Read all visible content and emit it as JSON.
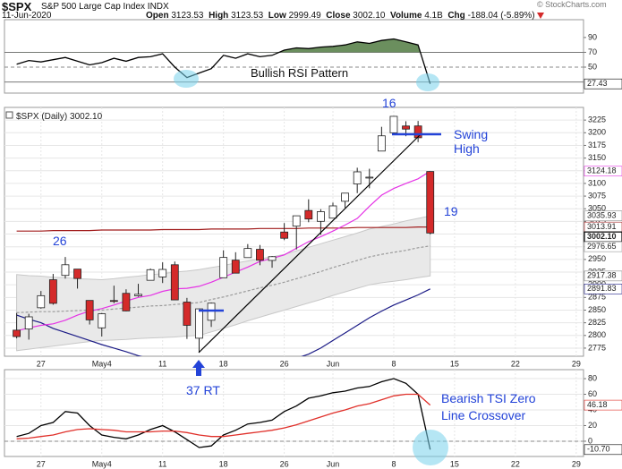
{
  "header": {
    "symbol": "$SPX",
    "name": "S&P 500 Large Cap Index",
    "exchange": "INDX",
    "date": "11-Jun-2020",
    "stats": [
      {
        "label": "Open",
        "value": "3123.53"
      },
      {
        "label": "High",
        "value": "3123.53"
      },
      {
        "label": "Low",
        "value": "2999.49"
      },
      {
        "label": "Close",
        "value": "3002.10"
      },
      {
        "label": "Volume",
        "value": "4.1B"
      },
      {
        "label": "Chg",
        "value": "-188.04 (-5.89%)"
      }
    ],
    "copyright": "© StockCharts.com"
  },
  "chart_data": [
    {
      "type": "line",
      "x": [
        0,
        1,
        2,
        3,
        4,
        5,
        6,
        7,
        8,
        9,
        10,
        11,
        12,
        13,
        14,
        15,
        16,
        17,
        18,
        19,
        20,
        21,
        22,
        23,
        24,
        25,
        26,
        27,
        28,
        29,
        30,
        31,
        32,
        33,
        34
      ],
      "xlim": [
        -1,
        46.6
      ],
      "ylim": [
        15,
        114
      ],
      "yticks": [
        90,
        70,
        50
      ],
      "grid": false,
      "levels": [
        70,
        30
      ],
      "dashed_levels": [
        50
      ],
      "annotations": [
        "Bullish RSI Pattern"
      ],
      "series": [
        {
          "color": "#000000",
          "fill_above": 70,
          "fill_color": "#6b8f5e",
          "values": [
            54,
            59,
            57,
            60,
            63,
            58,
            53,
            56,
            62,
            58,
            63,
            64,
            68,
            50,
            36,
            42,
            48,
            66,
            62,
            68,
            64,
            66,
            73,
            76,
            75,
            77,
            78,
            80,
            84,
            82,
            86,
            88,
            84,
            80,
            27.43
          ]
        }
      ]
    },
    {
      "type": "candlestick",
      "title": "$SPX (Daily)",
      "last_value_label": "3002.10",
      "x": [
        0,
        1,
        2,
        3,
        4,
        5,
        6,
        7,
        8,
        9,
        10,
        11,
        12,
        13,
        14,
        15,
        16,
        17,
        18,
        19,
        20,
        21,
        22,
        23,
        24,
        25,
        26,
        27,
        28,
        29,
        30,
        31,
        32,
        33,
        34
      ],
      "xlim": [
        -1,
        46.6
      ],
      "xticks": [
        {
          "value": 2,
          "label": "27"
        },
        {
          "value": 7,
          "label": "May4"
        },
        {
          "value": 12,
          "label": "11"
        },
        {
          "value": 17,
          "label": "18"
        },
        {
          "value": 22,
          "label": "26"
        },
        {
          "value": 26,
          "label": "Jun"
        },
        {
          "value": 31,
          "label": "8"
        },
        {
          "value": 36,
          "label": "15"
        },
        {
          "value": 41,
          "label": "22"
        },
        {
          "value": 46,
          "label": "29"
        }
      ],
      "ylim": [
        2759,
        3250
      ],
      "yticks": [
        3225,
        3200,
        3175,
        3150,
        3125,
        3100,
        3075,
        3050,
        3025,
        3000,
        2975,
        2950,
        2925,
        2900,
        2875,
        2850,
        2825,
        2800,
        2775
      ],
      "grid": true,
      "up_color": "#ffffff",
      "down_color": "#d42a2a",
      "open": [
        2810.42,
        2812.64,
        2854.65,
        2909.96,
        2918.46,
        2930.91,
        2869.09,
        2815.01,
        2868.88,
        2883.14,
        2878.26,
        2908.83,
        2915.46,
        2939.5,
        2865.86,
        2794.54,
        2829.95,
        2913.86,
        2948.59,
        2953.63,
        2969.95,
        2948.05,
        3004.08,
        3015.65,
        3046.61,
        3025.17,
        3031.48,
        3064.78,
        3098.9,
        3111.56,
        3163.84,
        3199.92,
        3213.32,
        3213.42,
        3123.53
      ],
      "high": [
        2844.24,
        2842.71,
        2887.72,
        2921.4,
        2954.86,
        2930.91,
        2869.09,
        2844.24,
        2898.23,
        2891.11,
        2901.92,
        2932.16,
        2944.25,
        2945.82,
        2874.14,
        2852.8,
        2865.01,
        2968.09,
        2964.21,
        2980.29,
        2978.5,
        2956.76,
        3021.72,
        3036.25,
        3068.67,
        3049.17,
        3062.18,
        3081.07,
        3130.94,
        3128.91,
        3211.72,
        3233.13,
        3222.71,
        3223.27,
        3123.53
      ],
      "low": [
        2794.26,
        2791.76,
        2852.89,
        2860.71,
        2912.16,
        2892.47,
        2821.61,
        2797.85,
        2863.55,
        2847.65,
        2876.48,
        2908.83,
        2903.44,
        2869.59,
        2793.15,
        2766.64,
        2816.78,
        2913.86,
        2922.35,
        2953.63,
        2938.57,
        2933.59,
        2988.17,
        2969.75,
        3023.4,
        2998.61,
        3031.48,
        3051.64,
        3080.82,
        3090.41,
        3163.84,
        3196,
        3193.11,
        3181.49,
        2999.49
      ],
      "close": [
        2797.8,
        2836.74,
        2878.48,
        2863.39,
        2939.51,
        2912.43,
        2830.71,
        2842.74,
        2868.44,
        2848.42,
        2881.19,
        2929.8,
        2930.32,
        2870.12,
        2820,
        2852.5,
        2863.7,
        2953.91,
        2922.94,
        2971.61,
        2948.51,
        2955.45,
        2991.77,
        3036.13,
        3029.73,
        3044.31,
        3055.73,
        3080.82,
        3122.87,
        3112.35,
        3193.93,
        3232.39,
        3207.18,
        3190.14,
        3002.1
      ],
      "band": {
        "color": "#e9e9e9",
        "upper": [
          2920,
          2918,
          2917,
          2915,
          2914,
          2912,
          2911,
          2910,
          2912,
          2915,
          2917,
          2920,
          2922,
          2925,
          2927,
          2930,
          2934,
          2938,
          2943,
          2947,
          2951,
          2955,
          2960,
          2967,
          2974,
          2981,
          2988,
          2995,
          3002,
          3010,
          3015,
          3020,
          3026,
          3031,
          3035.93
        ],
        "lower": [
          2770,
          2773,
          2776,
          2779,
          2782,
          2785,
          2788,
          2790,
          2791,
          2792,
          2794,
          2795,
          2796,
          2797,
          2799,
          2800,
          2807,
          2814,
          2821,
          2829,
          2836,
          2843,
          2850,
          2857,
          2864,
          2871,
          2879,
          2886,
          2893,
          2900,
          2904,
          2907,
          2910,
          2914,
          2917.38
        ]
      },
      "overlays": [
        {
          "color": "#9a9a9a",
          "dashed": true,
          "values": [
            2845,
            2846,
            2847,
            2847,
            2848,
            2849,
            2850,
            2850,
            2852,
            2854,
            2856,
            2858,
            2859,
            2861,
            2863,
            2865,
            2871,
            2876,
            2882,
            2888,
            2894,
            2899,
            2905,
            2912,
            2919,
            2926,
            2934,
            2941,
            2948,
            2955,
            2960,
            2964,
            2968,
            2973,
            2976.65
          ]
        },
        {
          "color": "#a11c1c",
          "values": [
            3006,
            3006,
            3006,
            3007,
            3007,
            3007,
            3007,
            3008,
            3008,
            3008,
            3008,
            3008,
            3009,
            3009,
            3009,
            3009,
            3010,
            3010,
            3010,
            3010,
            3011,
            3011,
            3011,
            3011,
            3012,
            3012,
            3012,
            3012,
            3013,
            3013,
            3013,
            3013,
            3013,
            3014,
            3013.91
          ]
        },
        {
          "color": "#1b1b86",
          "values": [
            2840,
            2832,
            2825,
            2814,
            2806,
            2798,
            2790,
            2782,
            2775,
            2768,
            2760,
            2754,
            2748,
            2743,
            2738,
            2735,
            2733,
            2732,
            2733,
            2735,
            2738,
            2742,
            2748,
            2755,
            2763,
            2775,
            2790,
            2805,
            2820,
            2835,
            2848,
            2860,
            2870,
            2880,
            2891.83
          ]
        },
        {
          "color": "#e533e5",
          "values": [
            2809,
            2815,
            2820,
            2823,
            2830,
            2840,
            2848,
            2853,
            2860,
            2868,
            2875,
            2879,
            2887,
            2892,
            2893,
            2897,
            2905,
            2915,
            2925,
            2935,
            2946,
            2952,
            2959,
            2972,
            2985,
            2995,
            3006,
            3018,
            3031,
            3055,
            3077,
            3090,
            3100,
            3109,
            3124.18
          ]
        }
      ],
      "annotations": [
        "26",
        "16",
        "19",
        "Swing High",
        "37 RT"
      ]
    },
    {
      "type": "line",
      "x": [
        0,
        1,
        2,
        3,
        4,
        5,
        6,
        7,
        8,
        9,
        10,
        11,
        12,
        13,
        14,
        15,
        16,
        17,
        18,
        19,
        20,
        21,
        22,
        23,
        24,
        25,
        26,
        27,
        28,
        29,
        30,
        31,
        32,
        33,
        34
      ],
      "xlim": [
        -1,
        46.6
      ],
      "xticks": [
        {
          "value": 2,
          "label": "27"
        },
        {
          "value": 7,
          "label": "May4"
        },
        {
          "value": 12,
          "label": "11"
        },
        {
          "value": 17,
          "label": "18"
        },
        {
          "value": 22,
          "label": "26"
        },
        {
          "value": 26,
          "label": "Jun"
        },
        {
          "value": 31,
          "label": "8"
        },
        {
          "value": 36,
          "label": "15"
        },
        {
          "value": 41,
          "label": "22"
        },
        {
          "value": 46,
          "label": "29"
        }
      ],
      "ylim": [
        -19.5,
        91.5
      ],
      "yticks": [
        80,
        60,
        40,
        20,
        0
      ],
      "grid": true,
      "dashed_levels": [
        0
      ],
      "annotations": [
        "Bearish TSI Zero Line Crossover"
      ],
      "series": [
        {
          "color": "#000000",
          "last_value_label": "-10.70",
          "values": [
            6,
            10,
            20,
            24,
            38,
            36,
            20,
            8,
            5,
            3,
            8,
            15,
            20,
            12,
            2,
            -8,
            -6,
            8,
            14,
            22,
            24,
            27,
            38,
            45,
            55,
            58,
            62,
            64,
            68,
            70,
            76,
            80,
            74,
            60,
            -10.7
          ]
        },
        {
          "color": "#e0302a",
          "values": [
            3,
            4,
            6,
            8,
            12,
            15,
            16,
            15,
            14,
            12,
            12,
            12,
            13,
            13,
            11,
            8,
            6,
            6,
            8,
            10,
            12,
            14,
            17,
            21,
            26,
            31,
            36,
            40,
            45,
            48,
            53,
            58,
            60,
            60,
            46.18
          ]
        }
      ]
    }
  ]
}
